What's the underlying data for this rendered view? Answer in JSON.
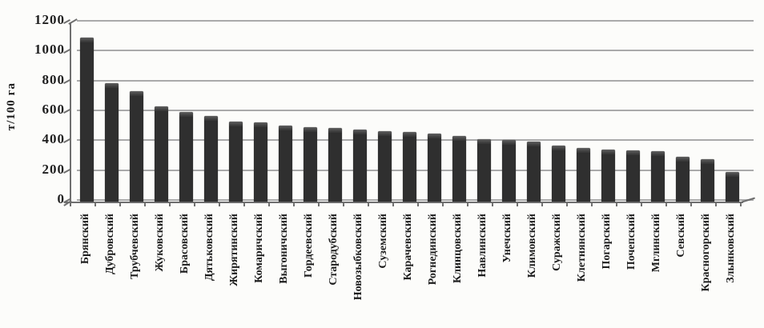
{
  "figure": {
    "kind": "scanned bar chart, no title, no legend",
    "background": "#fcfcfa"
  },
  "colors": {
    "bar": "#2f2f2f",
    "bar_top_face": "#555555",
    "grid": "#9b9b9b",
    "axis": "#6f6f6f",
    "text": "#1d1d1d"
  },
  "chart_data": {
    "type": "bar",
    "title": "",
    "xlabel": "",
    "ylabel": "т/100 га",
    "ylim": [
      0,
      1200
    ],
    "yticks": [
      0,
      200,
      400,
      600,
      800,
      1000,
      1200
    ],
    "grid": true,
    "legend": false,
    "bar_style": "3d-column, dark gray, sorted descending",
    "categories": [
      "Брянский",
      "Дубровский",
      "Трубчевский",
      "Жуковский",
      "Брасовский",
      "Дятьковский",
      "Жирятинский",
      "Комаричский",
      "Выгоничский",
      "Гордеевский",
      "Стародубский",
      "Новозыбковский",
      "Суземский",
      "Карачевский",
      "Рогнединский",
      "Клинцовский",
      "Навлинский",
      "Унечский",
      "Климовский",
      "Суражский",
      "Клетнянский",
      "Погарский",
      "Почепский",
      "Мглинский",
      "Севский",
      "Красногорский",
      "Злынковский"
    ],
    "values": [
      1090,
      780,
      730,
      625,
      590,
      560,
      525,
      520,
      500,
      490,
      480,
      470,
      460,
      455,
      445,
      430,
      405,
      400,
      390,
      365,
      350,
      340,
      330,
      325,
      290,
      275,
      190
    ]
  }
}
